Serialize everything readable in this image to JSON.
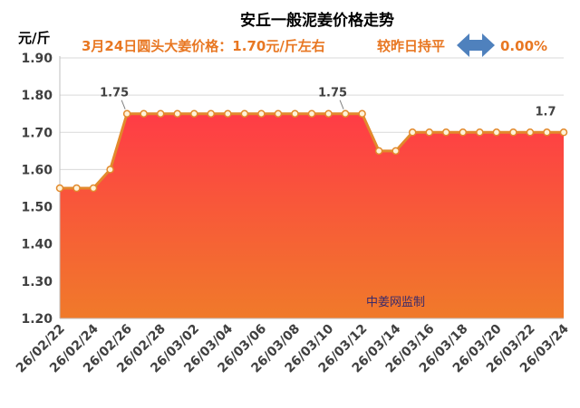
{
  "chart_data": {
    "type": "area",
    "title": "安丘一般泥姜价格走势",
    "subtitle": "3月24日圆头大姜价格：1.70元/斤左右",
    "trend_text": "较昨日持平",
    "change_text": "0.00%",
    "ylabel": "元/斤",
    "watermark": "中姜网监制",
    "ylim": [
      1.2,
      1.9
    ],
    "y_ticks": [
      "1.20",
      "1.30",
      "1.40",
      "1.50",
      "1.60",
      "1.70",
      "1.80",
      "1.90"
    ],
    "x_tick_labels": [
      "26/02/22",
      "26/02/24",
      "26/02/26",
      "26/02/28",
      "26/03/02",
      "26/03/04",
      "26/03/06",
      "26/03/08",
      "26/03/10",
      "26/03/12",
      "26/03/14",
      "26/03/16",
      "26/03/18",
      "26/03/20",
      "26/03/22",
      "26/03/24"
    ],
    "x": [
      "26/02/22",
      "26/02/23",
      "26/02/24",
      "26/02/25",
      "26/02/26",
      "26/02/27",
      "26/02/28",
      "26/03/01",
      "26/03/02",
      "26/03/03",
      "26/03/04",
      "26/03/05",
      "26/03/06",
      "26/03/07",
      "26/03/08",
      "26/03/09",
      "26/03/10",
      "26/03/11",
      "26/03/12",
      "26/03/13",
      "26/03/14",
      "26/03/15",
      "26/03/16",
      "26/03/17",
      "26/03/18",
      "26/03/19",
      "26/03/20",
      "26/03/21",
      "26/03/22",
      "26/03/23",
      "26/03/24"
    ],
    "values": [
      1.55,
      1.55,
      1.55,
      1.6,
      1.75,
      1.75,
      1.75,
      1.75,
      1.75,
      1.75,
      1.75,
      1.75,
      1.75,
      1.75,
      1.75,
      1.75,
      1.75,
      1.75,
      1.75,
      1.65,
      1.65,
      1.7,
      1.7,
      1.7,
      1.7,
      1.7,
      1.7,
      1.7,
      1.7,
      1.7,
      1.7
    ],
    "annotations": [
      {
        "index": 4,
        "text": "1.75"
      },
      {
        "index": 17,
        "text": "1.75"
      },
      {
        "index": 30,
        "text": "1.7"
      }
    ],
    "grid": true,
    "colors": {
      "title": "#000000",
      "accent": "#e87722",
      "arrow": "#4f81bd",
      "line": "#e2892c",
      "marker_fill": "#fff3d9",
      "area_top": "#ff3c46",
      "area_bottom": "#f07a2a",
      "grid": "#d9d9d9"
    }
  }
}
